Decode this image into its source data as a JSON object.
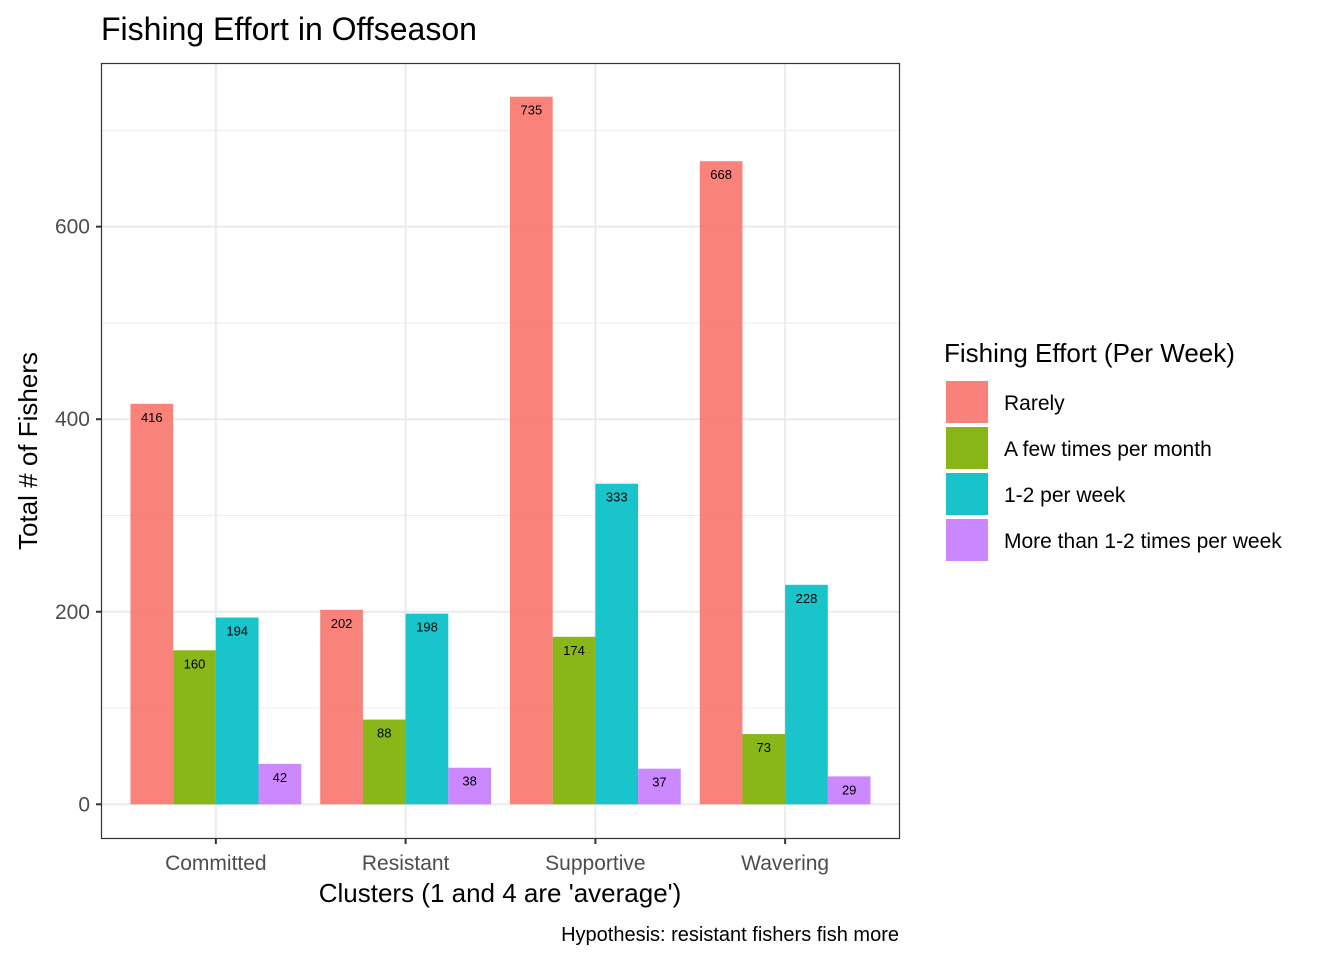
{
  "chart_data": {
    "type": "bar",
    "title": "Fishing Effort in Offseason",
    "xlabel": "Clusters (1 and 4 are 'average')",
    "ylabel": "Total # of Fishers",
    "caption": "Hypothesis: resistant fishers fish more",
    "categories": [
      "Committed",
      "Resistant",
      "Supportive",
      "Wavering"
    ],
    "y_ticks": [
      0,
      200,
      400,
      600
    ],
    "ylim": [
      -35,
      770
    ],
    "grid": true,
    "legend_position": "right",
    "legend_title": "Fishing Effort (Per Week)",
    "series": [
      {
        "name": "Rarely",
        "color": "#F8766D",
        "values": [
          416,
          202,
          735,
          668
        ]
      },
      {
        "name": "A few times per month",
        "color": "#7CAE00",
        "values": [
          160,
          88,
          174,
          73
        ]
      },
      {
        "name": "1-2 per week",
        "color": "#00BFC4",
        "values": [
          194,
          198,
          333,
          228
        ]
      },
      {
        "name": "More than 1-2 times per week",
        "color": "#C77CFF",
        "values": [
          42,
          38,
          37,
          29
        ]
      }
    ]
  }
}
